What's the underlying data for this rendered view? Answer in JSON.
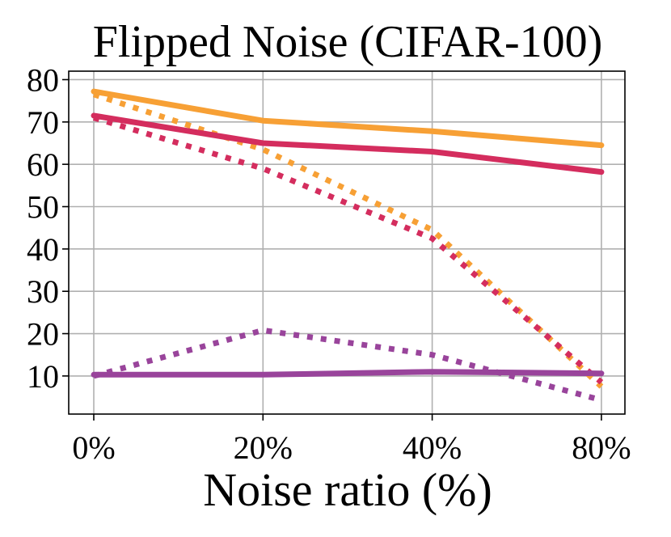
{
  "chart_data": {
    "type": "line",
    "title": "Flipped Noise (CIFAR-100)",
    "xlabel": "Noise ratio (%)",
    "ylabel": "",
    "categories": [
      "0%",
      "20%",
      "40%",
      "80%"
    ],
    "ylim": [
      1,
      82
    ],
    "yticks": [
      10,
      20,
      30,
      40,
      50,
      60,
      70,
      80
    ],
    "grid": true,
    "legend": "none",
    "series": [
      {
        "name": "orange-solid",
        "color": "#f7a035",
        "style": "solid",
        "values": [
          77.2,
          70.3,
          67.8,
          64.5
        ]
      },
      {
        "name": "orange-dotted",
        "color": "#f7a035",
        "style": "dotted",
        "values": [
          76.5,
          63.5,
          44.5,
          7.5
        ]
      },
      {
        "name": "crimson-solid",
        "color": "#d42d5e",
        "style": "solid",
        "values": [
          71.5,
          65.0,
          63.0,
          58.2
        ]
      },
      {
        "name": "crimson-dotted",
        "color": "#d42d5e",
        "style": "dotted",
        "values": [
          71.0,
          59.0,
          42.5,
          8.5
        ]
      },
      {
        "name": "purple-solid",
        "color": "#99449b",
        "style": "solid",
        "values": [
          10.3,
          10.3,
          11.0,
          10.6
        ]
      },
      {
        "name": "purple-dotted",
        "color": "#99449b",
        "style": "dotted",
        "values": [
          10.0,
          20.8,
          15.0,
          4.3
        ]
      }
    ]
  }
}
